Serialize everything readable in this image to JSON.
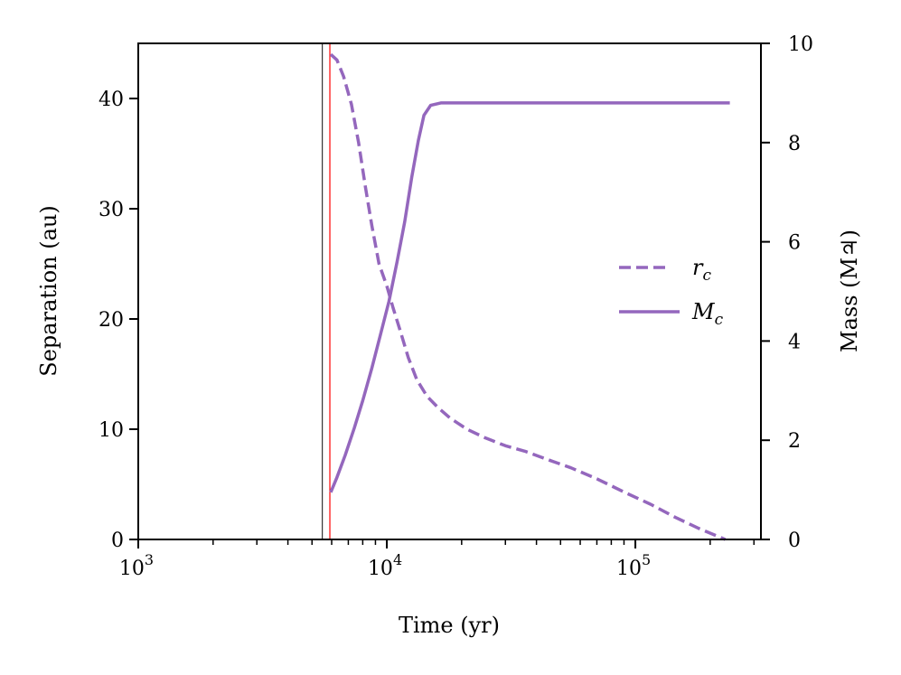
{
  "chart_data": {
    "type": "line",
    "xlabel": "Time (yr)",
    "ylabel_left": "Separation (au)",
    "ylabel_right": "Mass (M♃)",
    "x_scale": "log",
    "xlim": [
      1000,
      320000
    ],
    "ylim_left": [
      0,
      45
    ],
    "ylim_right": [
      0,
      10
    ],
    "x_ticks": [
      {
        "value": 1000,
        "base": "10",
        "exp": "3"
      },
      {
        "value": 10000,
        "base": "10",
        "exp": "4"
      },
      {
        "value": 100000,
        "base": "10",
        "exp": "5"
      }
    ],
    "y_ticks_left": [
      0,
      10,
      20,
      30,
      40
    ],
    "y_ticks_right": [
      0,
      2,
      4,
      6,
      8,
      10
    ],
    "vlines": [
      {
        "x": 5500,
        "color": "#333333"
      },
      {
        "x": 5900,
        "color": "#ff0000"
      }
    ],
    "legend_position": "center-right",
    "colors": {
      "series": "#9467bd"
    },
    "series": [
      {
        "name": "r_c",
        "label_base": "r",
        "label_sub": "c",
        "axis": "left",
        "style": "dashed",
        "x": [
          5950,
          6300,
          6700,
          7200,
          7700,
          8200,
          8700,
          9300,
          10000,
          10600,
          11300,
          12200,
          13200,
          14500,
          16000,
          18000,
          21000,
          25000,
          30000,
          36000,
          45000,
          55000,
          70000,
          90000,
          115000,
          145000,
          180000,
          230000
        ],
        "y": [
          44,
          43.5,
          42,
          39.5,
          36,
          32,
          28.5,
          25,
          23,
          21,
          19,
          16.5,
          14.5,
          13,
          12,
          11,
          10,
          9.2,
          8.5,
          8,
          7.2,
          6.5,
          5.5,
          4.3,
          3.2,
          2,
          1,
          0
        ]
      },
      {
        "name": "M_c",
        "label_base": "M",
        "label_sub": "c",
        "axis": "right",
        "style": "solid",
        "x": [
          5950,
          6300,
          6800,
          7400,
          8000,
          8700,
          9400,
          10200,
          11000,
          11800,
          12600,
          13400,
          14100,
          15000,
          16500,
          20000,
          30000,
          60000,
          120000,
          240000
        ],
        "y": [
          0.95,
          1.25,
          1.7,
          2.25,
          2.8,
          3.45,
          4.1,
          4.8,
          5.6,
          6.4,
          7.3,
          8.05,
          8.55,
          8.75,
          8.8,
          8.8,
          8.8,
          8.8,
          8.8,
          8.8
        ]
      }
    ]
  }
}
